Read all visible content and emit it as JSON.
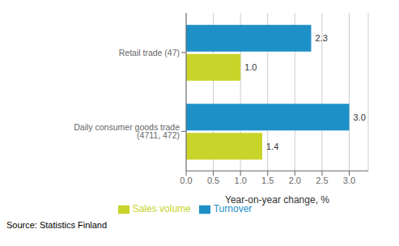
{
  "chart_data": {
    "type": "bar",
    "orientation": "horizontal",
    "categories": [
      "Daily consumer goods trade (4711, 472)",
      "Retail trade (47)"
    ],
    "series": [
      {
        "name": "Turnover",
        "color": "#1e90c8",
        "values": [
          3.0,
          2.3
        ],
        "value_labels": [
          "3.0",
          "2.3"
        ]
      },
      {
        "name": "Sales volume",
        "color": "#c8d42a",
        "values": [
          1.4,
          1.0
        ],
        "value_labels": [
          "1.4",
          "1.0"
        ]
      }
    ],
    "xlabel": "Year-on-year change, %",
    "xlim": [
      0,
      3.35
    ],
    "xticks": [
      {
        "value": 0,
        "label": "0.0"
      },
      0.5,
      {
        "value": 1,
        "label": "1.0"
      },
      1.5,
      {
        "value": 2,
        "label": "2.0"
      },
      2.5,
      {
        "value": 3,
        "label": "3.0"
      }
    ],
    "grid": true,
    "legend": "bottom",
    "data_labels": true,
    "annotations": [
      "Source: Statistics Finland"
    ]
  }
}
